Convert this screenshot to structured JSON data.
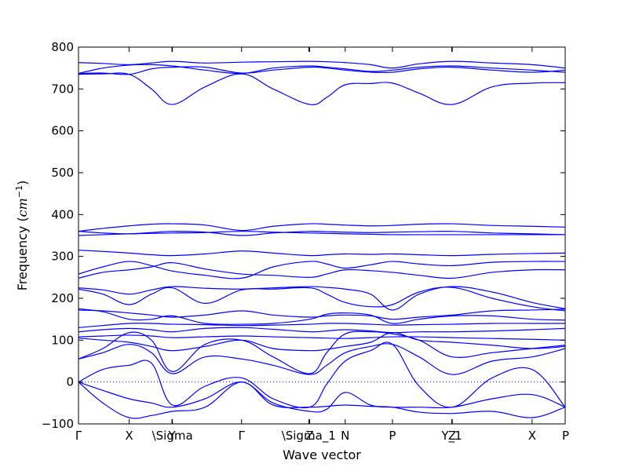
{
  "chart_data": {
    "type": "line",
    "title": "",
    "xlabel": "Wave vector",
    "ylabel": "Frequency",
    "ylabel_unit": "cm",
    "ylabel_unit_exp": "−1",
    "ylim": [
      -100,
      800
    ],
    "yticks": [
      -100,
      0,
      100,
      200,
      300,
      400,
      500,
      600,
      700,
      800
    ],
    "xlim": [
      0,
      10
    ],
    "xticks": [
      {
        "x": 0.0,
        "label": "Γ"
      },
      {
        "x": 1.04,
        "label": "X"
      },
      {
        "x": 1.92,
        "label": "Y"
      },
      {
        "x": 1.93,
        "label": "\\Sigma"
      },
      {
        "x": 3.35,
        "label": "Γ"
      },
      {
        "x": 4.73,
        "label": "\\Sigma_1"
      },
      {
        "x": 4.75,
        "label": "Z"
      },
      {
        "x": 5.48,
        "label": "N"
      },
      {
        "x": 6.45,
        "label": "P"
      },
      {
        "x": 7.67,
        "label": "Y_1"
      },
      {
        "x": 7.68,
        "label": "Z"
      },
      {
        "x": 9.32,
        "label": "X"
      },
      {
        "x": 10.0,
        "label": "P"
      }
    ],
    "zero_line": true,
    "grid": false,
    "line_color": "#0000ff",
    "series": [
      {
        "x": [
          0,
          0.5,
          1.04,
          1.5,
          1.93,
          2.6,
          3.35,
          4.0,
          4.75,
          5.1,
          5.48,
          6.0,
          6.45,
          7.0,
          7.68,
          8.5,
          9.32,
          10
        ],
        "y": [
          763,
          761,
          758,
          762,
          766,
          762,
          764,
          765,
          766,
          765,
          763,
          758,
          750,
          760,
          766,
          762,
          758,
          750
        ]
      },
      {
        "x": [
          0,
          0.5,
          1.04,
          1.5,
          1.93,
          2.6,
          3.35,
          4.0,
          4.75,
          5.1,
          5.48,
          6.0,
          6.45,
          7.0,
          7.68,
          8.5,
          9.32,
          10
        ],
        "y": [
          737,
          750,
          757,
          758,
          755,
          745,
          737,
          750,
          755,
          752,
          748,
          742,
          745,
          752,
          755,
          750,
          745,
          740
        ]
      },
      {
        "x": [
          0,
          0.5,
          1.04,
          1.5,
          1.93,
          2.6,
          3.35,
          4.0,
          4.75,
          5.1,
          5.48,
          6.0,
          6.45,
          7.0,
          7.68,
          8.5,
          9.32,
          10
        ],
        "y": [
          737,
          738,
          735,
          748,
          752,
          752,
          738,
          745,
          752,
          750,
          745,
          740,
          740,
          748,
          752,
          745,
          740,
          745
        ]
      },
      {
        "x": [
          0,
          0.5,
          1.04,
          1.5,
          1.93,
          2.6,
          3.35,
          4.0,
          4.75,
          5.1,
          5.48,
          6.0,
          6.45,
          7.0,
          7.68,
          8.5,
          9.32,
          10
        ],
        "y": [
          735,
          736,
          735,
          700,
          663,
          705,
          736,
          700,
          663,
          680,
          710,
          713,
          714,
          690,
          663,
          705,
          714,
          715
        ]
      },
      {
        "x": [
          0,
          0.5,
          1.04,
          1.5,
          1.93,
          2.6,
          3.35,
          4.0,
          4.75,
          5.1,
          5.48,
          6.0,
          6.45,
          7.0,
          7.68,
          8.5,
          9.32,
          10
        ],
        "y": [
          360,
          367,
          373,
          377,
          378,
          375,
          362,
          372,
          378,
          377,
          375,
          373,
          374,
          377,
          378,
          374,
          372,
          370
        ]
      },
      {
        "x": [
          0,
          0.5,
          1.04,
          1.5,
          1.93,
          2.6,
          3.35,
          4.0,
          4.75,
          5.1,
          5.48,
          6.0,
          6.45,
          7.0,
          7.68,
          8.5,
          9.32,
          10
        ],
        "y": [
          360,
          356,
          354,
          357,
          360,
          358,
          350,
          356,
          360,
          359,
          358,
          357,
          358,
          359,
          360,
          356,
          354,
          352
        ]
      },
      {
        "x": [
          0,
          0.5,
          1.04,
          1.5,
          1.93,
          2.6,
          3.35,
          4.0,
          4.75,
          5.1,
          5.48,
          6.0,
          6.45,
          7.0,
          7.68,
          8.5,
          9.32,
          10
        ],
        "y": [
          350,
          352,
          354,
          355,
          356,
          357,
          360,
          358,
          356,
          355,
          354,
          353,
          352,
          352,
          352,
          352,
          352,
          352
        ]
      },
      {
        "x": [
          0,
          0.5,
          1.04,
          1.5,
          1.93,
          2.6,
          3.35,
          4.0,
          4.75,
          5.1,
          5.48,
          6.0,
          6.45,
          7.0,
          7.68,
          8.5,
          9.32,
          10
        ],
        "y": [
          315,
          312,
          308,
          304,
          302,
          306,
          313,
          308,
          302,
          304,
          306,
          305,
          306,
          304,
          302,
          305,
          307,
          308
        ]
      },
      {
        "x": [
          0,
          0.5,
          1.04,
          1.5,
          1.93,
          2.6,
          3.35,
          4.0,
          4.75,
          5.1,
          5.48,
          6.0,
          6.45,
          7.0,
          7.68,
          8.5,
          9.32,
          10
        ],
        "y": [
          258,
          275,
          288,
          278,
          265,
          255,
          248,
          275,
          288,
          282,
          272,
          280,
          288,
          282,
          278,
          286,
          288,
          288
        ]
      },
      {
        "x": [
          0,
          0.5,
          1.04,
          1.5,
          1.93,
          2.6,
          3.35,
          4.0,
          4.75,
          5.1,
          5.48,
          6.0,
          6.45,
          7.0,
          7.68,
          8.5,
          9.32,
          10
        ],
        "y": [
          248,
          262,
          268,
          275,
          285,
          270,
          258,
          255,
          250,
          258,
          268,
          266,
          262,
          255,
          248,
          262,
          268,
          268
        ]
      },
      {
        "x": [
          0,
          0.5,
          1.04,
          1.5,
          1.93,
          2.6,
          3.35,
          4.0,
          4.75,
          5.1,
          5.48,
          6.0,
          6.45,
          7.0,
          7.68,
          8.5,
          9.32,
          10
        ],
        "y": [
          225,
          220,
          210,
          220,
          228,
          224,
          222,
          225,
          228,
          226,
          222,
          210,
          172,
          210,
          228,
          215,
          190,
          175
        ]
      },
      {
        "x": [
          0,
          0.5,
          1.04,
          1.5,
          1.93,
          2.6,
          3.35,
          4.0,
          4.75,
          5.1,
          5.48,
          6.0,
          6.45,
          7.0,
          7.68,
          8.5,
          9.32,
          10
        ],
        "y": [
          222,
          210,
          185,
          210,
          225,
          188,
          220,
          222,
          225,
          210,
          190,
          180,
          185,
          215,
          226,
          200,
          180,
          170
        ]
      },
      {
        "x": [
          0,
          0.5,
          1.04,
          1.5,
          1.93,
          2.6,
          3.35,
          4.0,
          4.75,
          5.1,
          5.48,
          6.0,
          6.45,
          7.0,
          7.68,
          8.5,
          9.32,
          10
        ],
        "y": [
          172,
          170,
          165,
          160,
          155,
          160,
          170,
          160,
          155,
          158,
          160,
          158,
          150,
          155,
          160,
          170,
          172,
          174
        ]
      },
      {
        "x": [
          0,
          0.5,
          1.04,
          1.5,
          1.93,
          2.6,
          3.35,
          4.0,
          4.75,
          5.1,
          5.48,
          6.0,
          6.45,
          7.0,
          7.68,
          8.5,
          9.32,
          10
        ],
        "y": [
          175,
          168,
          150,
          150,
          158,
          140,
          138,
          140,
          150,
          162,
          165,
          160,
          140,
          150,
          158,
          158,
          150,
          148
        ]
      },
      {
        "x": [
          0,
          0.5,
          1.04,
          1.5,
          1.93,
          2.6,
          3.35,
          4.0,
          4.75,
          5.1,
          5.48,
          6.0,
          6.45,
          7.0,
          7.68,
          8.5,
          9.32,
          10
        ],
        "y": [
          130,
          135,
          140,
          140,
          138,
          137,
          135,
          136,
          138,
          140,
          140,
          138,
          136,
          137,
          138,
          140,
          140,
          140
        ]
      },
      {
        "x": [
          0,
          0.5,
          1.04,
          1.5,
          1.93,
          2.6,
          3.35,
          4.0,
          4.75,
          5.1,
          5.48,
          6.0,
          6.45,
          7.0,
          7.68,
          8.5,
          9.32,
          10
        ],
        "y": [
          120,
          125,
          128,
          125,
          120,
          128,
          130,
          126,
          120,
          122,
          125,
          122,
          118,
          120,
          120,
          122,
          125,
          128
        ]
      },
      {
        "x": [
          0,
          0.5,
          1.04,
          1.5,
          1.93,
          2.6,
          3.35,
          4.0,
          4.75,
          5.1,
          5.48,
          6.0,
          6.45,
          7.0,
          7.68,
          8.5,
          9.32,
          10
        ],
        "y": [
          108,
          110,
          112,
          110,
          106,
          108,
          110,
          108,
          106,
          105,
          104,
          106,
          108,
          108,
          106,
          104,
          102,
          100
        ]
      },
      {
        "x": [
          0,
          0.5,
          1.04,
          1.5,
          1.93,
          2.6,
          3.35,
          4.0,
          4.75,
          5.1,
          5.48,
          6.0,
          6.45,
          7.0,
          7.68,
          8.5,
          9.32,
          10
        ],
        "y": [
          105,
          100,
          95,
          85,
          75,
          85,
          100,
          80,
          75,
          78,
          85,
          95,
          118,
          100,
          95,
          88,
          80,
          85
        ]
      },
      {
        "x": [
          0,
          0.5,
          1.04,
          1.5,
          1.93,
          2.6,
          3.35,
          4.0,
          4.75,
          5.1,
          5.48,
          6.0,
          6.45,
          7.0,
          7.68,
          8.5,
          9.32,
          10
        ],
        "y": [
          55,
          80,
          118,
          100,
          25,
          90,
          100,
          60,
          20,
          70,
          115,
          120,
          115,
          100,
          60,
          70,
          80,
          88
        ]
      },
      {
        "x": [
          0,
          0.5,
          1.04,
          1.5,
          1.93,
          2.6,
          3.35,
          4.0,
          4.75,
          5.1,
          5.48,
          6.0,
          6.45,
          7.0,
          7.68,
          8.5,
          9.32,
          10
        ],
        "y": [
          55,
          70,
          90,
          70,
          20,
          60,
          55,
          40,
          18,
          40,
          70,
          85,
          90,
          60,
          18,
          50,
          60,
          80
        ]
      },
      {
        "x": [
          0,
          0.5,
          1.04,
          1.5,
          1.93,
          2.6,
          3.35,
          4.0,
          4.75,
          5.1,
          5.48,
          6.0,
          6.45,
          7.0,
          7.68,
          8.5,
          9.32,
          10
        ],
        "y": [
          0,
          30,
          40,
          45,
          -55,
          -10,
          10,
          -40,
          -60,
          -5,
          50,
          75,
          90,
          -10,
          -60,
          10,
          30,
          -60
        ]
      },
      {
        "x": [
          0,
          0.5,
          1.04,
          1.5,
          1.93,
          2.6,
          3.35,
          4.0,
          4.75,
          5.1,
          5.48,
          6.0,
          6.45,
          7.0,
          7.68,
          8.5,
          9.32,
          10
        ],
        "y": [
          0,
          -50,
          -85,
          -80,
          -70,
          -60,
          0,
          -55,
          -60,
          -58,
          -55,
          -58,
          -60,
          -72,
          -75,
          -70,
          -85,
          -60
        ]
      },
      {
        "x": [
          0,
          0.5,
          1.04,
          1.5,
          1.93,
          2.6,
          3.35,
          4.0,
          4.75,
          5.1,
          5.48,
          6.0,
          6.45,
          7.0,
          7.68,
          8.5,
          9.32,
          10
        ],
        "y": [
          0,
          -20,
          -40,
          -50,
          -60,
          -40,
          0,
          -50,
          -70,
          -65,
          -25,
          -55,
          -60,
          -60,
          -60,
          -40,
          -30,
          -60
        ]
      }
    ]
  }
}
